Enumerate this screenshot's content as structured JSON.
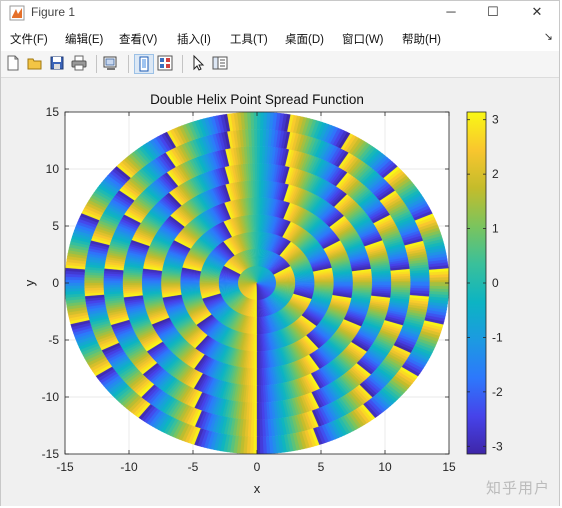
{
  "window": {
    "title": "Figure 1",
    "minimize": "─",
    "maximize": "☐",
    "close": "✕"
  },
  "menu": {
    "items": [
      "文件(F)",
      "编辑(E)",
      "查看(V)",
      "插入(I)",
      "工具(T)",
      "桌面(D)",
      "窗口(W)",
      "帮助(H)"
    ],
    "overflow": "↘"
  },
  "toolbar": {
    "buttons": [
      "new-figure-icon",
      "open-file-icon",
      "save-icon",
      "print-icon",
      "link-plot-icon",
      "hide-plot-tools-icon",
      "show-plot-tools-icon",
      "edit-plot-arrow-icon",
      "property-inspector-icon"
    ]
  },
  "colors": {
    "parula": [
      "#3e26a8",
      "#4643ea",
      "#2d78fc",
      "#1c9ae1",
      "#0cb4c3",
      "#3ac09a",
      "#7bc45d",
      "#c4bc2b",
      "#f9c62e",
      "#f9f815"
    ]
  },
  "chart_data": {
    "type": "heatmap",
    "title": "Double Helix Point Spread Function",
    "xlabel": "x",
    "ylabel": "y",
    "xlim": [
      -15,
      15
    ],
    "ylim": [
      -15,
      15
    ],
    "xticks": [
      -15,
      -10,
      -5,
      0,
      5,
      10,
      15
    ],
    "yticks": [
      -15,
      -10,
      -5,
      0,
      5,
      10,
      15
    ],
    "grid": true,
    "shape": "disk",
    "radius": 15,
    "ring_boundaries": [
      0,
      1.5,
      3,
      4.5,
      6,
      7.5,
      9,
      10.5,
      12,
      13.5,
      15
    ],
    "ring_vortex_charges": [
      1,
      3,
      5,
      7,
      9,
      11,
      13,
      15,
      17,
      19
    ],
    "phase_range": [
      -3.14159,
      3.14159
    ],
    "colormap": "parula",
    "colorbar": {
      "ticks": [
        3,
        2,
        1,
        0,
        -1,
        -2,
        -3
      ],
      "range": [
        -3.14159,
        3.14159
      ],
      "position": "right"
    }
  },
  "watermark": "知乎用户"
}
